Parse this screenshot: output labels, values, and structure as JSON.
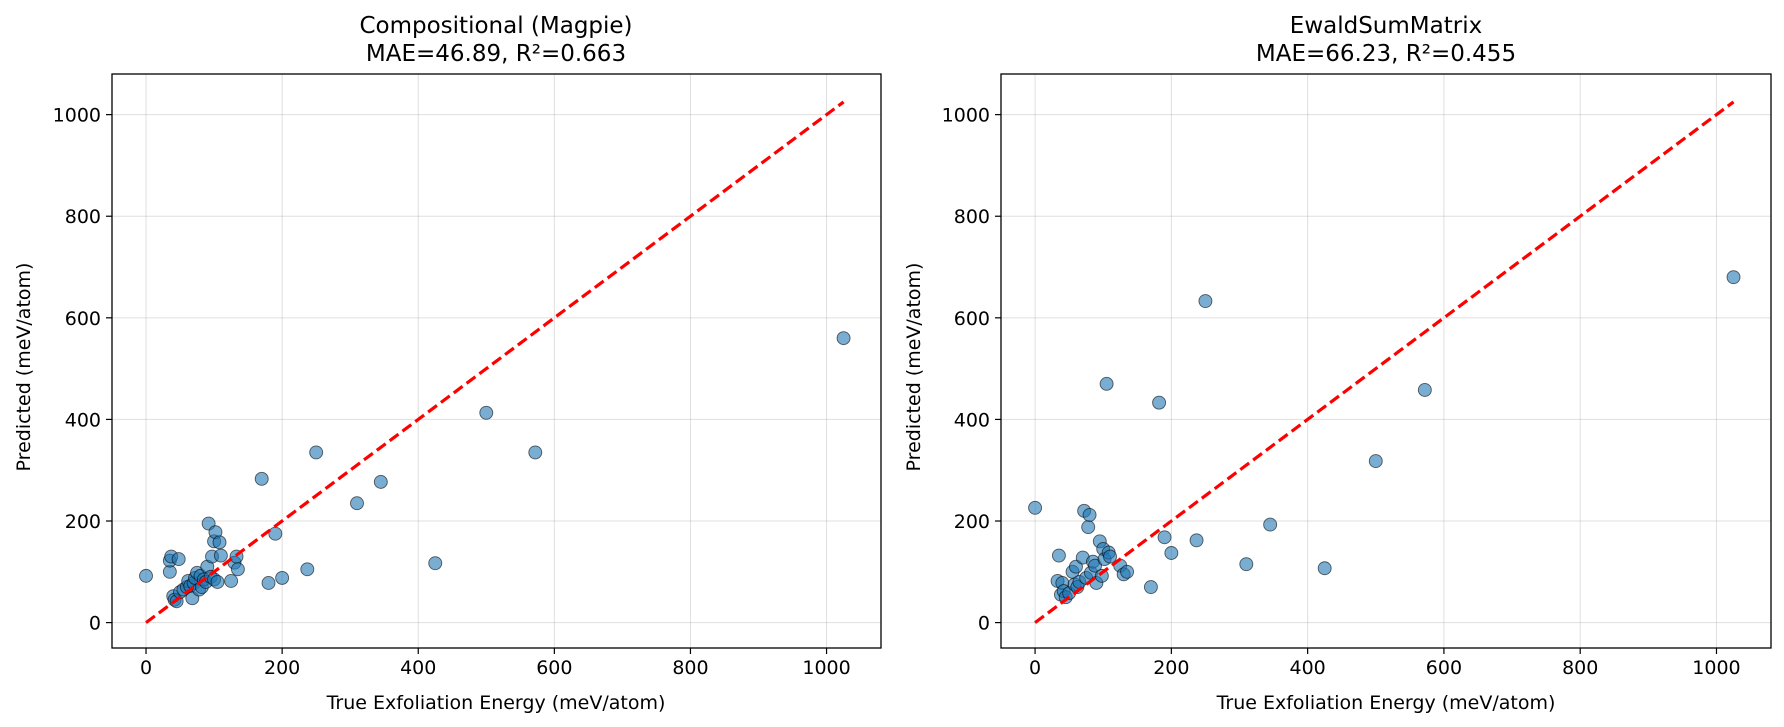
{
  "chart_data": [
    {
      "type": "scatter",
      "title_line1": "Compositional (Magpie)",
      "title_line2": "MAE=46.89, R²=0.663",
      "xlabel": "True Exfoliation Energy (meV/atom)",
      "ylabel": "Predicted (meV/atom)",
      "xlim": [
        -50,
        1080
      ],
      "ylim": [
        -50,
        1080
      ],
      "xticks": [
        0,
        200,
        400,
        600,
        800,
        1000
      ],
      "yticks": [
        0,
        200,
        400,
        600,
        800,
        1000
      ],
      "grid": true,
      "reference_line": {
        "from": [
          0,
          0
        ],
        "to": [
          1025,
          1025
        ],
        "style": "dashed",
        "color": "#ff0000"
      },
      "point_color": "#1f77b4",
      "points": [
        [
          0,
          92
        ],
        [
          35,
          100
        ],
        [
          35,
          122
        ],
        [
          37,
          130
        ],
        [
          48,
          125
        ],
        [
          40,
          52
        ],
        [
          42,
          45
        ],
        [
          45,
          42
        ],
        [
          50,
          60
        ],
        [
          55,
          65
        ],
        [
          60,
          70
        ],
        [
          62,
          82
        ],
        [
          65,
          72
        ],
        [
          68,
          48
        ],
        [
          70,
          78
        ],
        [
          72,
          88
        ],
        [
          75,
          98
        ],
        [
          78,
          65
        ],
        [
          80,
          92
        ],
        [
          82,
          70
        ],
        [
          85,
          85
        ],
        [
          88,
          80
        ],
        [
          90,
          110
        ],
        [
          92,
          195
        ],
        [
          95,
          90
        ],
        [
          97,
          130
        ],
        [
          100,
          85
        ],
        [
          100,
          160
        ],
        [
          102,
          178
        ],
        [
          105,
          80
        ],
        [
          108,
          158
        ],
        [
          110,
          132
        ],
        [
          125,
          82
        ],
        [
          130,
          118
        ],
        [
          133,
          130
        ],
        [
          135,
          105
        ],
        [
          170,
          283
        ],
        [
          180,
          78
        ],
        [
          190,
          175
        ],
        [
          200,
          88
        ],
        [
          237,
          105
        ],
        [
          250,
          335
        ],
        [
          310,
          235
        ],
        [
          345,
          277
        ],
        [
          425,
          117
        ],
        [
          500,
          413
        ],
        [
          572,
          335
        ],
        [
          1025,
          560
        ]
      ]
    },
    {
      "type": "scatter",
      "title_line1": "EwaldSumMatrix",
      "title_line2": "MAE=66.23, R²=0.455",
      "xlabel": "True Exfoliation Energy (meV/atom)",
      "ylabel": "Predicted (meV/atom)",
      "xlim": [
        -50,
        1080
      ],
      "ylim": [
        -50,
        1080
      ],
      "xticks": [
        0,
        200,
        400,
        600,
        800,
        1000
      ],
      "yticks": [
        0,
        200,
        400,
        600,
        800,
        1000
      ],
      "grid": true,
      "reference_line": {
        "from": [
          0,
          0
        ],
        "to": [
          1025,
          1025
        ],
        "style": "dashed",
        "color": "#ff0000"
      },
      "point_color": "#1f77b4",
      "points": [
        [
          0,
          226
        ],
        [
          33,
          82
        ],
        [
          35,
          132
        ],
        [
          38,
          55
        ],
        [
          40,
          78
        ],
        [
          42,
          62
        ],
        [
          45,
          50
        ],
        [
          50,
          58
        ],
        [
          55,
          100
        ],
        [
          58,
          75
        ],
        [
          60,
          110
        ],
        [
          62,
          70
        ],
        [
          65,
          80
        ],
        [
          70,
          128
        ],
        [
          72,
          220
        ],
        [
          75,
          88
        ],
        [
          78,
          188
        ],
        [
          80,
          212
        ],
        [
          82,
          98
        ],
        [
          85,
          120
        ],
        [
          88,
          112
        ],
        [
          90,
          78
        ],
        [
          95,
          160
        ],
        [
          98,
          92
        ],
        [
          100,
          145
        ],
        [
          102,
          125
        ],
        [
          105,
          470
        ],
        [
          108,
          138
        ],
        [
          110,
          130
        ],
        [
          125,
          112
        ],
        [
          130,
          95
        ],
        [
          135,
          100
        ],
        [
          170,
          70
        ],
        [
          182,
          433
        ],
        [
          190,
          168
        ],
        [
          200,
          137
        ],
        [
          237,
          162
        ],
        [
          250,
          633
        ],
        [
          310,
          115
        ],
        [
          345,
          193
        ],
        [
          425,
          107
        ],
        [
          500,
          318
        ],
        [
          572,
          458
        ],
        [
          1025,
          680
        ]
      ]
    }
  ]
}
